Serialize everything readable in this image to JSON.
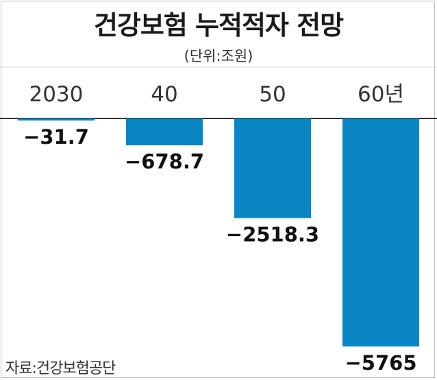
{
  "chart_data": {
    "type": "bar",
    "title": "건강보험 누적적자 전망",
    "unit": "(단위:조원)",
    "source": "자료:건강보험공단",
    "categories": [
      "2030",
      "40",
      "50",
      "60년"
    ],
    "values": [
      -31.7,
      -678.7,
      -2518.3,
      -5765
    ],
    "value_labels": [
      "−31.7",
      "−678.7",
      "−2518.3",
      "−5765"
    ],
    "bar_color": "#0a86c4",
    "gridline_color": "#d9d9d9",
    "axis_color": "#333333",
    "grid": false
  }
}
